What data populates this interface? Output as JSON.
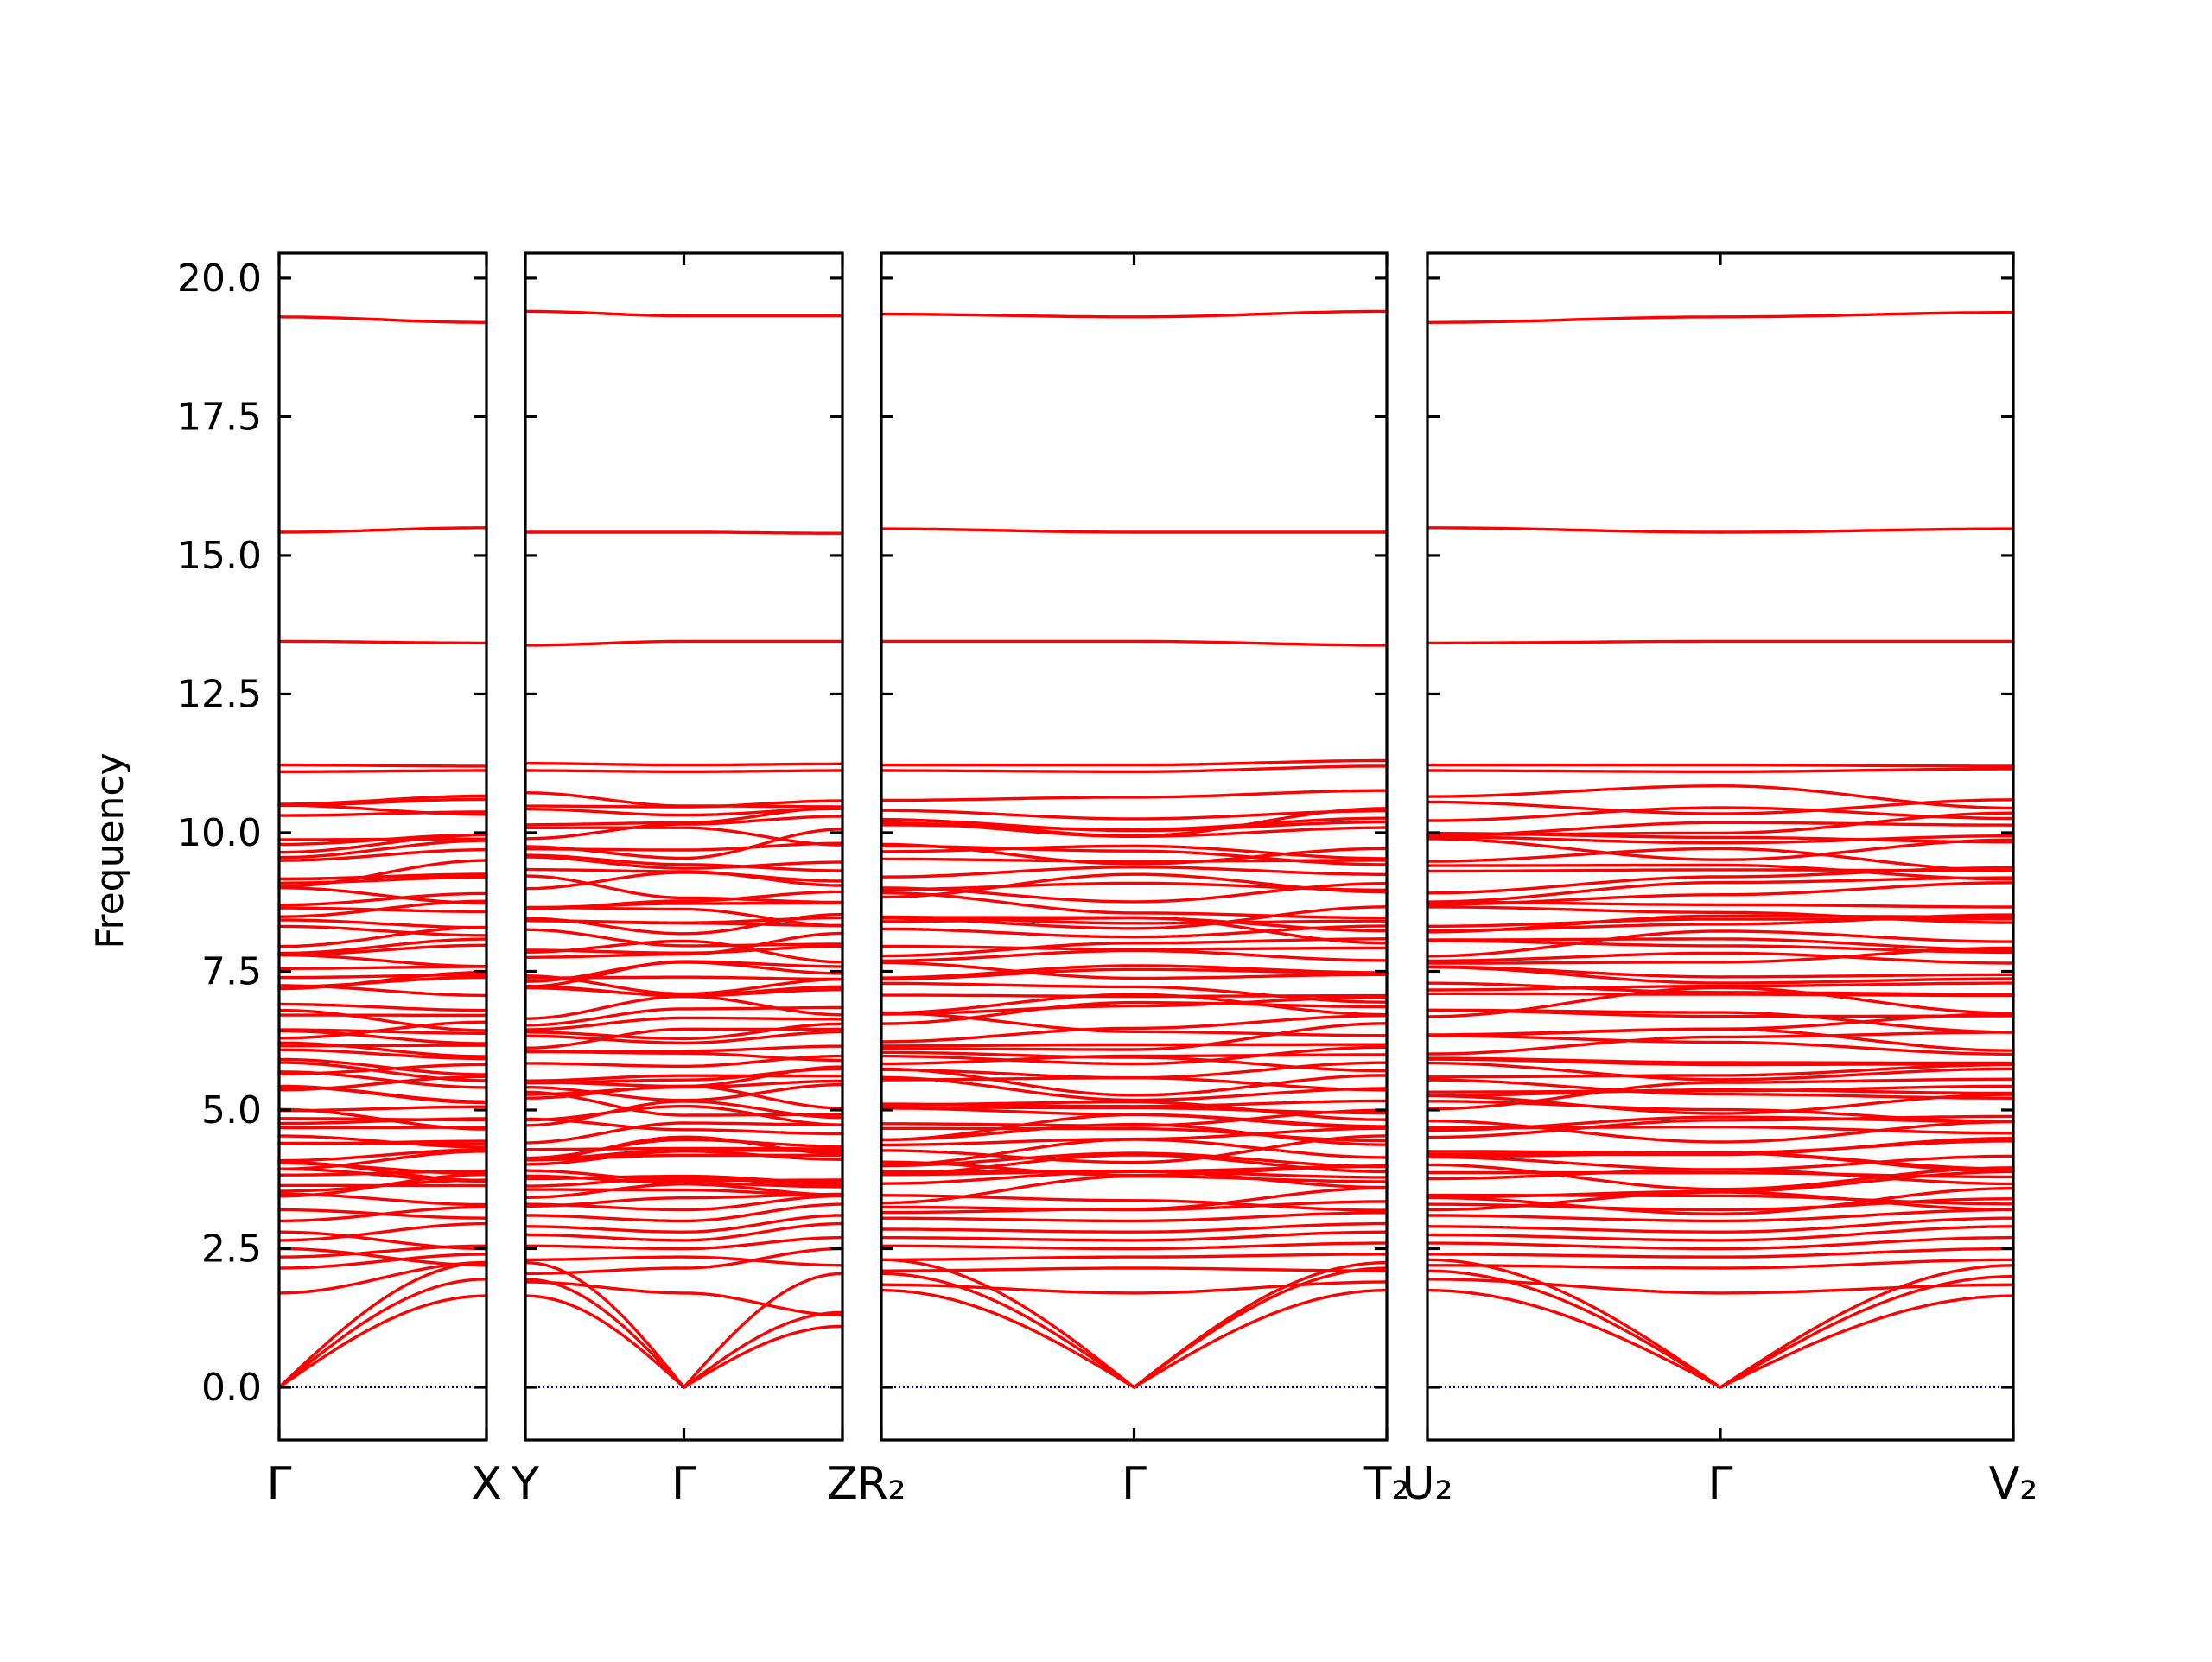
{
  "chart_data": {
    "type": "line",
    "title": "",
    "xlabel": "",
    "ylabel": "Frequency",
    "ylim": [
      -0.95,
      20.45
    ],
    "yticks": [
      "0.0",
      "2.5",
      "5.0",
      "7.5",
      "10.0",
      "12.5",
      "15.0",
      "17.5",
      "20.0"
    ],
    "grid": false,
    "zero_line_color": "#0000cc",
    "band_color": "#ff0000",
    "panels": [
      {
        "path": [
          "Γ",
          "X"
        ],
        "tick_labels": [
          "Γ",
          "X"
        ],
        "acoustic": [
          [
            0,
            1.65
          ],
          [
            0,
            1.95
          ],
          [
            0,
            2.25
          ]
        ],
        "optical_low": [
          [
            1.7,
            2.25
          ],
          [
            2.15,
            2.4
          ],
          [
            2.35,
            2.55
          ],
          [
            2.5,
            2.2
          ],
          [
            2.65,
            2.95
          ],
          [
            2.8,
            2.5
          ],
          [
            3.0,
            3.25
          ],
          [
            3.2,
            3.05
          ]
        ],
        "flat_high": [
          [
            11.1,
            11.12
          ],
          [
            11.22,
            11.2
          ],
          [
            13.45,
            13.42
          ],
          [
            15.42,
            15.5
          ],
          [
            19.3,
            19.2
          ]
        ]
      },
      {
        "path": [
          "Y",
          "Γ",
          "Z"
        ],
        "tick_labels": [
          "Y",
          "Γ",
          "Z"
        ],
        "acoustic": [
          [
            1.65,
            0,
            1.1
          ],
          [
            1.95,
            0,
            1.35
          ],
          [
            2.25,
            0,
            2.05
          ]
        ],
        "optical_low": [
          [
            1.9,
            1.7,
            1.3
          ],
          [
            2.05,
            2.15,
            2.5
          ],
          [
            2.3,
            2.35,
            2.2
          ],
          [
            2.55,
            2.5,
            2.7
          ],
          [
            2.75,
            2.65,
            2.95
          ],
          [
            2.9,
            2.8,
            3.1
          ],
          [
            3.1,
            3.0,
            3.3
          ],
          [
            3.3,
            3.2,
            3.45
          ]
        ],
        "flat_high": [
          [
            11.12,
            11.1,
            11.12
          ],
          [
            11.25,
            11.22,
            11.24
          ],
          [
            13.38,
            13.45,
            13.45
          ],
          [
            15.42,
            15.42,
            15.4
          ],
          [
            19.4,
            19.32,
            19.32
          ]
        ]
      },
      {
        "path": [
          "R₂",
          "Γ",
          "T₂"
        ],
        "tick_labels": [
          "R₂",
          "Γ",
          "T₂"
        ],
        "acoustic": [
          [
            1.75,
            0,
            1.75
          ],
          [
            2.05,
            0,
            2.15
          ],
          [
            2.3,
            0,
            2.25
          ]
        ],
        "optical_low": [
          [
            1.85,
            1.7,
            1.9
          ],
          [
            2.1,
            2.15,
            2.1
          ],
          [
            2.3,
            2.35,
            2.4
          ],
          [
            2.55,
            2.5,
            2.6
          ],
          [
            2.7,
            2.65,
            2.8
          ],
          [
            2.85,
            2.8,
            2.95
          ],
          [
            3.05,
            3.0,
            3.15
          ],
          [
            3.25,
            3.2,
            3.35
          ]
        ],
        "flat_high": [
          [
            11.12,
            11.1,
            11.2
          ],
          [
            11.22,
            11.22,
            11.3
          ],
          [
            13.45,
            13.45,
            13.38
          ],
          [
            15.48,
            15.42,
            15.42
          ],
          [
            19.35,
            19.3,
            19.4
          ]
        ]
      },
      {
        "path": [
          "U₂",
          "Γ",
          "V₂"
        ],
        "tick_labels": [
          "U₂",
          "Γ",
          "V₂"
        ],
        "acoustic": [
          [
            1.75,
            0,
            1.65
          ],
          [
            2.1,
            0,
            2.0
          ],
          [
            2.3,
            0,
            2.2
          ]
        ],
        "optical_low": [
          [
            1.95,
            1.7,
            1.85
          ],
          [
            2.2,
            2.15,
            2.3
          ],
          [
            2.4,
            2.35,
            2.5
          ],
          [
            2.6,
            2.5,
            2.7
          ],
          [
            2.75,
            2.65,
            2.9
          ],
          [
            2.9,
            2.8,
            3.05
          ],
          [
            3.1,
            3.0,
            3.2
          ],
          [
            3.3,
            3.2,
            3.4
          ]
        ],
        "flat_high": [
          [
            11.12,
            11.1,
            11.15
          ],
          [
            11.22,
            11.22,
            11.2
          ],
          [
            13.42,
            13.45,
            13.45
          ],
          [
            15.5,
            15.42,
            15.48
          ],
          [
            19.2,
            19.3,
            19.38
          ]
        ]
      }
    ]
  }
}
